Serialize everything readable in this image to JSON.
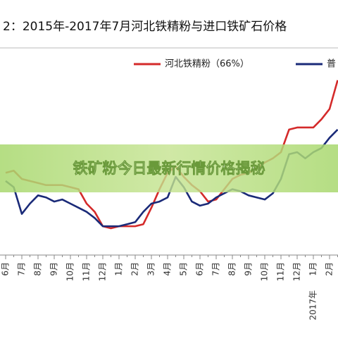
{
  "chart_data": {
    "type": "line",
    "title": "2：2015年-2017年7月河北铁精粉与进口铁矿石价格",
    "overlay_title": "铁矿粉今日最新行情价格揭秘",
    "year_label": "2017年",
    "categories": [
      "6月",
      null,
      "7月",
      null,
      "8月",
      null,
      "9月",
      null,
      "10月",
      null,
      "11月",
      null,
      "12月",
      null,
      "1月",
      null,
      "2月",
      null,
      "3月",
      null,
      "4月",
      null,
      "5月",
      null,
      "6月",
      null,
      "7月",
      null,
      "8月",
      null,
      "9月",
      null,
      "10月",
      null,
      "11月",
      null,
      "12月",
      null,
      "1月",
      null,
      "2月",
      null
    ],
    "series": [
      {
        "name": "河北铁精粉（66%）",
        "color": "#d42a2a",
        "values": [
          40,
          41,
          37,
          36,
          35,
          34,
          34,
          34,
          33,
          32,
          25,
          21,
          14,
          13,
          14,
          14,
          14,
          15,
          23,
          32,
          40,
          43,
          38,
          34,
          31,
          26,
          27,
          32,
          37,
          39,
          40,
          42,
          45,
          47,
          50,
          61,
          62,
          62,
          62,
          66,
          71,
          85
        ]
      },
      {
        "name": "普",
        "color": "#1a2a78",
        "values": [
          36,
          33,
          20,
          25,
          29,
          28,
          26,
          27,
          25,
          23,
          21,
          18,
          14,
          14,
          14,
          15,
          16,
          21,
          25,
          26,
          28,
          38,
          33,
          26,
          24,
          25,
          28,
          30,
          32,
          31,
          29,
          28,
          27,
          30,
          37,
          49,
          50,
          47,
          50,
          52,
          57,
          61
        ]
      }
    ],
    "ylim": [
      0,
      100
    ]
  }
}
